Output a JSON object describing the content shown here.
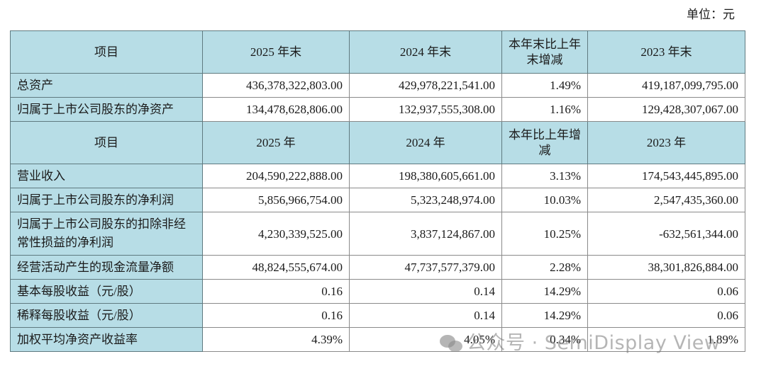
{
  "unit_label": "单位：元",
  "balance_header": [
    "项目",
    "2025 年末",
    "2024 年末",
    "本年末比上年末增减",
    "2023 年末"
  ],
  "balance_rows": [
    {
      "label": "总资产",
      "v2025": "436,378,322,803.00",
      "v2024": "429,978,221,541.00",
      "change": "1.49%",
      "v2023": "419,187,099,795.00"
    },
    {
      "label": "归属于上市公司股东的净资产",
      "v2025": "134,478,628,806.00",
      "v2024": "132,937,555,308.00",
      "change": "1.16%",
      "v2023": "129,428,307,067.00"
    }
  ],
  "income_header": [
    "项目",
    "2025 年",
    "2024 年",
    "本年比上年增减",
    "2023 年"
  ],
  "income_rows": [
    {
      "label": "营业收入",
      "v2025": "204,590,222,888.00",
      "v2024": "198,380,605,661.00",
      "change": "3.13%",
      "v2023": "174,543,445,895.00"
    },
    {
      "label": "归属于上市公司股东的净利润",
      "v2025": "5,856,966,754.00",
      "v2024": "5,323,248,974.00",
      "change": "10.03%",
      "v2023": "2,547,435,360.00"
    },
    {
      "label": "归属于上市公司股东的扣除非经常性损益的净利润",
      "v2025": "4,230,339,525.00",
      "v2024": "3,837,124,867.00",
      "change": "10.25%",
      "v2023": "-632,561,344.00"
    },
    {
      "label": "经营活动产生的现金流量净额",
      "v2025": "48,824,555,674.00",
      "v2024": "47,737,577,379.00",
      "change": "2.28%",
      "v2023": "38,301,826,884.00"
    },
    {
      "label": "基本每股收益（元/股）",
      "v2025": "0.16",
      "v2024": "0.14",
      "change": "14.29%",
      "v2023": "0.06"
    },
    {
      "label": "稀释每股收益（元/股）",
      "v2025": "0.16",
      "v2024": "0.14",
      "change": "14.29%",
      "v2023": "0.06"
    },
    {
      "label": "加权平均净资产收益率",
      "v2025": "4.39%",
      "v2024": "4.05%",
      "change": "0.34%",
      "v2023": "1.89%"
    }
  ],
  "watermark": {
    "icon": "wechat-icon",
    "text": "公众号 · SemiDisplay View"
  },
  "colors": {
    "header_bg": "#b7dde6",
    "border": "#8a8a8a"
  }
}
